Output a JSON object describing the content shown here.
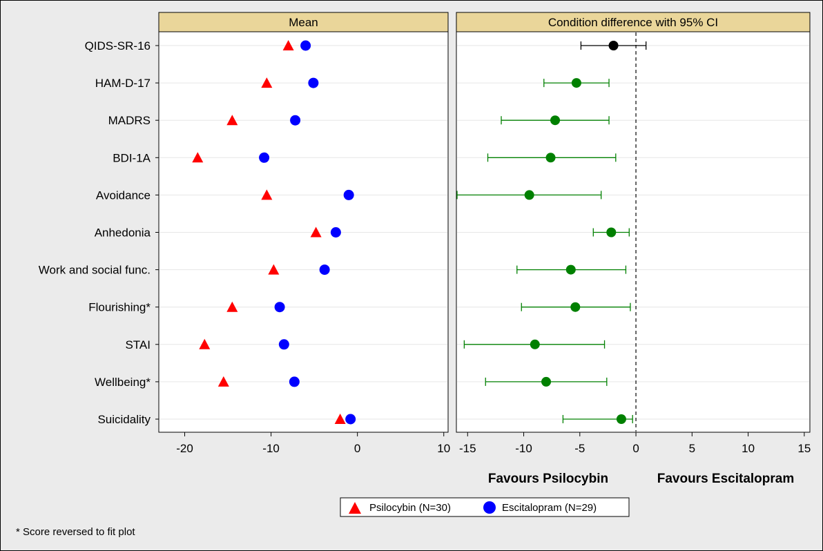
{
  "chart_data": [
    {
      "type": "scatter",
      "panel": "Mean",
      "title": "Mean",
      "categories": [
        "QIDS-SR-16",
        "HAM-D-17",
        "MADRS",
        "BDI-1A",
        "Avoidance",
        "Anhedonia",
        "Work and social func.",
        "Flourishing*",
        "STAI",
        "Wellbeing*",
        "Suicidality"
      ],
      "series": [
        {
          "name": "Psilocybin (N=30)",
          "marker": "triangle",
          "color": "#ff0000",
          "values": [
            -8.0,
            -10.5,
            -14.5,
            -18.5,
            -10.5,
            -4.8,
            -9.7,
            -14.5,
            -17.7,
            -15.5,
            -2.0
          ]
        },
        {
          "name": "Escitalopram (N=29)",
          "marker": "circle",
          "color": "#0000ff",
          "values": [
            -6.0,
            -5.1,
            -7.2,
            -10.8,
            -1.0,
            -2.5,
            -3.8,
            -9.0,
            -8.5,
            -7.3,
            -0.8
          ]
        }
      ],
      "xlim": [
        -23,
        10.5
      ],
      "xticks": [
        -20,
        -10,
        0,
        10
      ],
      "xtick_labels": [
        "-20",
        "-10",
        "0",
        "10"
      ],
      "grid": "horizontal"
    },
    {
      "type": "scatter",
      "panel": "difference",
      "title": "Condition difference with 95% CI",
      "categories": [
        "QIDS-SR-16",
        "HAM-D-17",
        "MADRS",
        "BDI-1A",
        "Avoidance",
        "Anhedonia",
        "Work and social func.",
        "Flourishing*",
        "STAI",
        "Wellbeing*",
        "Suicidality"
      ],
      "estimates": [
        -2.0,
        -5.3,
        -7.2,
        -7.6,
        -9.5,
        -2.2,
        -5.8,
        -5.4,
        -9.0,
        -8.0,
        -1.3
      ],
      "ci_low": [
        -4.9,
        -8.2,
        -12.0,
        -13.2,
        -16.0,
        -3.8,
        -10.6,
        -10.2,
        -15.3,
        -13.4,
        -6.5
      ],
      "ci_high": [
        0.9,
        -2.4,
        -2.4,
        -1.8,
        -3.1,
        -0.6,
        -0.9,
        -0.5,
        -2.8,
        -2.6,
        -0.3
      ],
      "point_colors": [
        "#000000",
        "#008000",
        "#008000",
        "#008000",
        "#008000",
        "#008000",
        "#008000",
        "#008000",
        "#008000",
        "#008000",
        "#008000"
      ],
      "xlim": [
        -16,
        15.5
      ],
      "xticks": [
        -15,
        -10,
        -5,
        0,
        5,
        10,
        15
      ],
      "xtick_labels": [
        "-15",
        "-10",
        "-5",
        "0",
        "5",
        "10",
        "15"
      ],
      "reference_line": 0,
      "grid": "horizontal"
    }
  ],
  "favours": {
    "left": "Favours Psilocybin",
    "right": "Favours Escitalopram"
  },
  "legend": {
    "items": [
      {
        "label": "Psilocybin (N=30)",
        "marker": "triangle",
        "color": "#ff0000"
      },
      {
        "label": "Escitalopram (N=29)",
        "marker": "circle",
        "color": "#0000ff"
      }
    ],
    "placement": "bottom-center"
  },
  "footnote": "* Score reversed to fit plot",
  "colors": {
    "strip_header": "#ead69a",
    "background": "#ebebeb",
    "panel": "#ffffff",
    "gridline": "#e6e6e6"
  }
}
